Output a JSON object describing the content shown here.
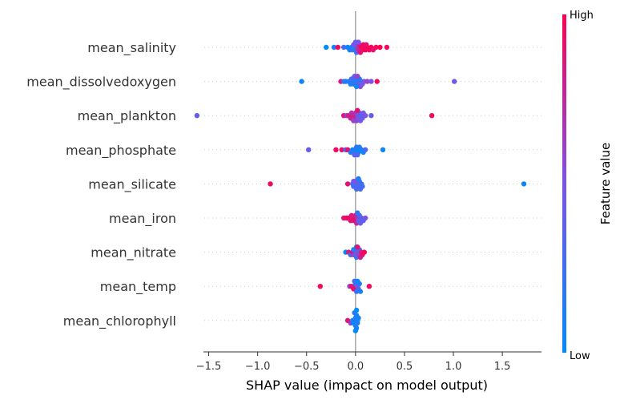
{
  "chart_data": {
    "type": "scatter",
    "subtype": "shap-beeswarm",
    "title": "",
    "xlabel": "SHAP value (impact on model output)",
    "xlim": [
      -1.75,
      1.9
    ],
    "xticks": [
      -1.5,
      -1.0,
      -0.5,
      0.0,
      0.5,
      1.0,
      1.5
    ],
    "xtick_labels": [
      "−1.5",
      "−1.0",
      "−0.5",
      "0.0",
      "0.5",
      "1.0",
      "1.5"
    ],
    "colorbar": {
      "title": "Feature value",
      "high_label": "High",
      "low_label": "Low",
      "low_color": "#008bfb",
      "mid_color": "#7c52e8",
      "high_color": "#ff0052"
    },
    "features": [
      {
        "name": "mean_salinity",
        "points": [
          [
            -0.3,
            0.0
          ],
          [
            -0.22,
            0.1
          ],
          [
            -0.18,
            0.95
          ],
          [
            -0.12,
            0.3
          ],
          [
            -0.08,
            0.05
          ],
          [
            -0.06,
            0.1
          ],
          [
            -0.04,
            0.05
          ],
          [
            -0.03,
            0.2
          ],
          [
            -0.01,
            0.1
          ],
          [
            0.0,
            0.15
          ],
          [
            0.0,
            0.05
          ],
          [
            0.01,
            0.3
          ],
          [
            0.02,
            0.6
          ],
          [
            0.03,
            0.75
          ],
          [
            0.04,
            0.85
          ],
          [
            0.05,
            0.9
          ],
          [
            0.06,
            0.95
          ],
          [
            0.07,
            0.9
          ],
          [
            0.08,
            0.95
          ],
          [
            0.09,
            0.95
          ],
          [
            0.1,
            1.0
          ],
          [
            0.11,
            0.9
          ],
          [
            0.12,
            0.95
          ],
          [
            0.14,
            0.95
          ],
          [
            0.16,
            1.0
          ],
          [
            0.18,
            0.9
          ],
          [
            0.21,
            0.95
          ],
          [
            0.25,
            1.0
          ],
          [
            0.32,
            0.95
          ],
          [
            -0.02,
            0.5
          ],
          [
            0.0,
            0.4
          ],
          [
            0.03,
            0.5
          ]
        ]
      },
      {
        "name": "mean_dissolvedoxygen",
        "points": [
          [
            -0.55,
            0.05
          ],
          [
            -0.15,
            0.85
          ],
          [
            -0.12,
            0.2
          ],
          [
            -0.1,
            0.15
          ],
          [
            -0.07,
            0.1
          ],
          [
            -0.05,
            0.1
          ],
          [
            -0.03,
            0.05
          ],
          [
            -0.02,
            0.15
          ],
          [
            0.0,
            0.1
          ],
          [
            0.0,
            0.2
          ],
          [
            0.01,
            0.3
          ],
          [
            0.02,
            0.15
          ],
          [
            0.03,
            0.4
          ],
          [
            0.04,
            0.1
          ],
          [
            0.05,
            0.55
          ],
          [
            0.06,
            0.2
          ],
          [
            0.07,
            0.45
          ],
          [
            0.09,
            0.5
          ],
          [
            0.12,
            0.6
          ],
          [
            0.16,
            0.5
          ],
          [
            0.22,
            0.95
          ],
          [
            1.01,
            0.45
          ],
          [
            -0.04,
            0.3
          ],
          [
            0.01,
            0.05
          ],
          [
            -0.01,
            0.4
          ],
          [
            0.02,
            0.6
          ]
        ]
      },
      {
        "name": "mean_plankton",
        "points": [
          [
            -1.62,
            0.4
          ],
          [
            -0.12,
            0.9
          ],
          [
            -0.09,
            0.6
          ],
          [
            -0.07,
            0.85
          ],
          [
            -0.05,
            0.8
          ],
          [
            -0.03,
            0.9
          ],
          [
            -0.02,
            0.75
          ],
          [
            -0.01,
            0.85
          ],
          [
            0.0,
            0.8
          ],
          [
            0.0,
            0.7
          ],
          [
            0.01,
            0.6
          ],
          [
            0.02,
            0.55
          ],
          [
            0.03,
            0.45
          ],
          [
            0.04,
            0.4
          ],
          [
            0.05,
            0.5
          ],
          [
            0.06,
            0.35
          ],
          [
            0.07,
            0.4
          ],
          [
            0.08,
            0.45
          ],
          [
            0.1,
            0.5
          ],
          [
            0.16,
            0.4
          ],
          [
            0.78,
            0.95
          ],
          [
            -0.04,
            0.7
          ],
          [
            0.02,
            0.9
          ],
          [
            -0.02,
            0.6
          ]
        ]
      },
      {
        "name": "mean_phosphate",
        "points": [
          [
            -0.48,
            0.4
          ],
          [
            -0.2,
            0.95
          ],
          [
            -0.14,
            0.9
          ],
          [
            -0.1,
            0.3
          ],
          [
            -0.08,
            0.9
          ],
          [
            -0.05,
            0.1
          ],
          [
            -0.03,
            0.05
          ],
          [
            -0.02,
            0.2
          ],
          [
            0.0,
            0.1
          ],
          [
            0.0,
            0.05
          ],
          [
            0.01,
            0.2
          ],
          [
            0.02,
            0.1
          ],
          [
            0.03,
            0.05
          ],
          [
            0.04,
            0.15
          ],
          [
            0.06,
            0.1
          ],
          [
            0.08,
            0.05
          ],
          [
            0.1,
            0.3
          ],
          [
            0.28,
            0.05
          ],
          [
            -0.01,
            0.4
          ],
          [
            0.02,
            0.3
          ]
        ]
      },
      {
        "name": "mean_silicate",
        "points": [
          [
            -0.87,
            0.95
          ],
          [
            -0.08,
            0.9
          ],
          [
            -0.03,
            0.2
          ],
          [
            -0.02,
            0.3
          ],
          [
            -0.01,
            0.25
          ],
          [
            0.0,
            0.2
          ],
          [
            0.0,
            0.35
          ],
          [
            0.01,
            0.3
          ],
          [
            0.02,
            0.4
          ],
          [
            0.03,
            0.35
          ],
          [
            0.04,
            0.3
          ],
          [
            0.05,
            0.25
          ],
          [
            0.06,
            0.2
          ],
          [
            0.07,
            0.3
          ],
          [
            1.72,
            0.05
          ],
          [
            -0.02,
            0.5
          ],
          [
            0.03,
            0.15
          ]
        ]
      },
      {
        "name": "mean_iron",
        "points": [
          [
            -0.12,
            0.9
          ],
          [
            -0.09,
            0.95
          ],
          [
            -0.07,
            0.95
          ],
          [
            -0.05,
            0.9
          ],
          [
            -0.03,
            0.95
          ],
          [
            -0.02,
            0.85
          ],
          [
            -0.01,
            0.9
          ],
          [
            0.0,
            0.95
          ],
          [
            0.0,
            0.8
          ],
          [
            0.01,
            0.75
          ],
          [
            0.02,
            0.7
          ],
          [
            0.03,
            0.4
          ],
          [
            0.04,
            0.3
          ],
          [
            0.05,
            0.45
          ],
          [
            0.06,
            0.4
          ],
          [
            0.08,
            0.35
          ],
          [
            0.1,
            0.5
          ],
          [
            -0.04,
            0.85
          ],
          [
            0.02,
            0.2
          ]
        ]
      },
      {
        "name": "mean_nitrate",
        "points": [
          [
            -0.1,
            0.05
          ],
          [
            -0.07,
            0.85
          ],
          [
            -0.05,
            0.3
          ],
          [
            -0.03,
            0.9
          ],
          [
            -0.02,
            0.6
          ],
          [
            -0.01,
            0.8
          ],
          [
            0.0,
            0.5
          ],
          [
            0.0,
            0.7
          ],
          [
            0.01,
            0.2
          ],
          [
            0.02,
            0.4
          ],
          [
            0.03,
            0.6
          ],
          [
            0.04,
            0.3
          ],
          [
            0.05,
            0.8
          ],
          [
            0.06,
            0.85
          ],
          [
            0.07,
            0.9
          ],
          [
            0.09,
            0.95
          ],
          [
            -0.02,
            0.1
          ],
          [
            0.01,
            0.05
          ],
          [
            0.02,
            0.9
          ]
        ]
      },
      {
        "name": "mean_temp",
        "points": [
          [
            -0.36,
            0.95
          ],
          [
            -0.06,
            0.6
          ],
          [
            -0.04,
            0.9
          ],
          [
            -0.02,
            0.95
          ],
          [
            -0.01,
            0.85
          ],
          [
            0.0,
            0.9
          ],
          [
            0.0,
            0.1
          ],
          [
            0.01,
            0.2
          ],
          [
            0.02,
            0.5
          ],
          [
            0.03,
            0.35
          ],
          [
            0.04,
            0.15
          ],
          [
            0.05,
            0.1
          ],
          [
            0.14,
            0.95
          ],
          [
            -0.01,
            0.3
          ],
          [
            0.02,
            0.05
          ]
        ]
      },
      {
        "name": "mean_chlorophyll",
        "points": [
          [
            -0.08,
            0.9
          ],
          [
            -0.05,
            0.6
          ],
          [
            -0.03,
            0.1
          ],
          [
            -0.02,
            0.05
          ],
          [
            -0.01,
            0.1
          ],
          [
            0.0,
            0.05
          ],
          [
            0.0,
            0.15
          ],
          [
            0.0,
            0.1
          ],
          [
            0.01,
            0.05
          ],
          [
            0.01,
            0.1
          ],
          [
            0.02,
            0.05
          ],
          [
            0.02,
            0.15
          ],
          [
            0.03,
            0.1
          ],
          [
            -0.01,
            0.2
          ],
          [
            0.0,
            0.0
          ],
          [
            0.01,
            0.0
          ]
        ]
      }
    ]
  }
}
